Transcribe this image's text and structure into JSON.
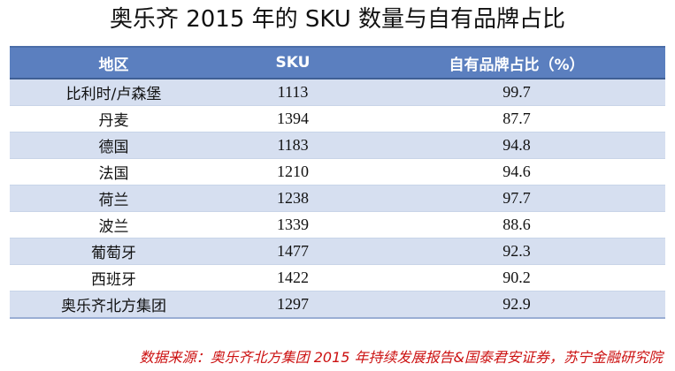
{
  "title": "奥乐齐 2015 年的 SKU 数量与自有品牌占比",
  "table": {
    "headers": [
      "地区",
      "SKU",
      "自有品牌占比（%）"
    ],
    "rows": [
      [
        "比利时/卢森堡",
        "1113",
        "99.7"
      ],
      [
        "丹麦",
        "1394",
        "87.7"
      ],
      [
        "德国",
        "1183",
        "94.8"
      ],
      [
        "法国",
        "1210",
        "94.6"
      ],
      [
        "荷兰",
        "1238",
        "97.7"
      ],
      [
        "波兰",
        "1339",
        "88.6"
      ],
      [
        "葡萄牙",
        "1477",
        "92.3"
      ],
      [
        "西班牙",
        "1422",
        "90.2"
      ],
      [
        "奥乐齐北方集团",
        "1297",
        "92.9"
      ]
    ]
  },
  "source": "数据来源：奥乐齐北方集团 2015 年持续发展报告&国泰君安证券，苏宁金融研究院",
  "colors": {
    "header_bg": "#5b7fbf",
    "stripe_bg": "#d6dff0",
    "source_text": "#cc1111"
  }
}
